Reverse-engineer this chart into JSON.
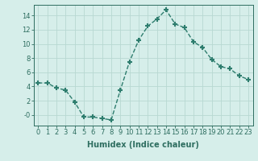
{
  "x": [
    0,
    1,
    2,
    3,
    4,
    5,
    6,
    7,
    8,
    9,
    10,
    11,
    12,
    13,
    14,
    15,
    16,
    17,
    18,
    19,
    20,
    21,
    22,
    23
  ],
  "y": [
    4.5,
    4.5,
    3.8,
    3.5,
    1.8,
    -0.3,
    -0.3,
    -0.5,
    -0.7,
    3.5,
    7.5,
    10.5,
    12.5,
    13.5,
    14.8,
    12.8,
    12.3,
    10.3,
    9.5,
    7.8,
    6.8,
    6.5,
    5.5,
    5.0
  ],
  "line_color": "#2e7d6e",
  "marker": "+",
  "marker_size": 4,
  "bg_color": "#d6eeea",
  "grid_color": "#b8d8d2",
  "xlabel": "Humidex (Indice chaleur)",
  "ylim": [
    -1.5,
    15.5
  ],
  "xlim": [
    -0.5,
    23.5
  ],
  "yticks": [
    0,
    2,
    4,
    6,
    8,
    10,
    12,
    14
  ],
  "ytick_labels": [
    "-0",
    "2",
    "4",
    "6",
    "8",
    "10",
    "12",
    "14"
  ],
  "xticks": [
    0,
    1,
    2,
    3,
    4,
    5,
    6,
    7,
    8,
    9,
    10,
    11,
    12,
    13,
    14,
    15,
    16,
    17,
    18,
    19,
    20,
    21,
    22,
    23
  ],
  "axis_color": "#2e6e60",
  "label_fontsize": 7,
  "tick_fontsize": 6,
  "linewidth": 1.0,
  "marker_thickness": 1.5
}
